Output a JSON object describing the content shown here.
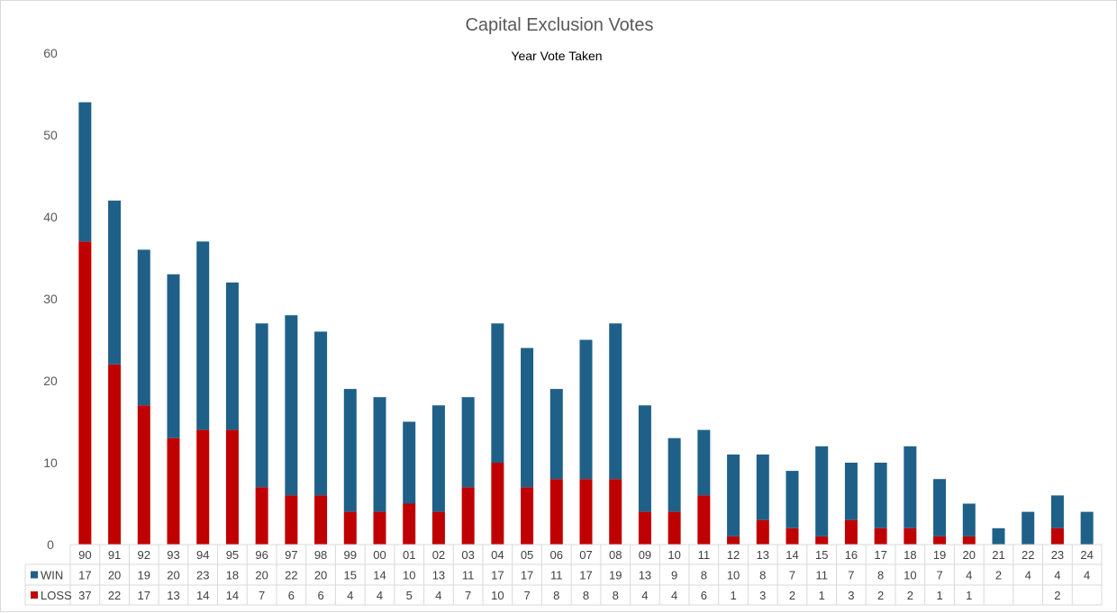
{
  "chart_data": {
    "type": "bar",
    "stacked": true,
    "title": "Capital Exclusion Votes",
    "subtitle": "Year Vote Taken",
    "xlabel": "",
    "ylabel": "",
    "ylim": [
      0,
      60
    ],
    "yticks": [
      0,
      10,
      20,
      30,
      40,
      50,
      60
    ],
    "grid": false,
    "legend": "data-table-left",
    "categories": [
      "90",
      "91",
      "92",
      "93",
      "94",
      "95",
      "96",
      "97",
      "98",
      "99",
      "00",
      "01",
      "02",
      "03",
      "04",
      "05",
      "06",
      "07",
      "08",
      "09",
      "10",
      "11",
      "12",
      "13",
      "14",
      "15",
      "16",
      "17",
      "18",
      "19",
      "20",
      "21",
      "22",
      "23",
      "24"
    ],
    "series": [
      {
        "name": "LOSS",
        "color": "#c00000",
        "values": [
          37,
          22,
          17,
          13,
          14,
          14,
          7,
          6,
          6,
          4,
          4,
          5,
          4,
          7,
          10,
          7,
          8,
          8,
          8,
          4,
          4,
          6,
          1,
          3,
          2,
          1,
          3,
          2,
          2,
          1,
          1,
          null,
          null,
          2,
          null
        ]
      },
      {
        "name": "WIN",
        "color": "#1f6088",
        "values": [
          17,
          20,
          19,
          20,
          23,
          18,
          20,
          22,
          20,
          15,
          14,
          10,
          13,
          11,
          17,
          17,
          11,
          17,
          19,
          13,
          9,
          8,
          10,
          8,
          7,
          11,
          7,
          8,
          10,
          7,
          4,
          2,
          4,
          4,
          4
        ]
      }
    ]
  }
}
